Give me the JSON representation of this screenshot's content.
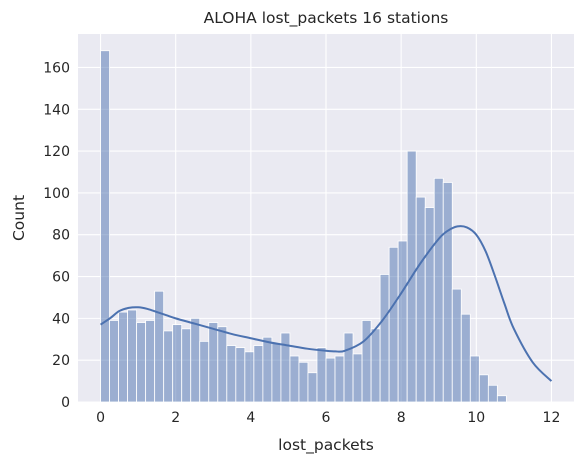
{
  "chart_data": {
    "type": "bar",
    "title": "ALOHA lost_packets 16 stations",
    "xlabel": "lost_packets",
    "ylabel": "Count",
    "xlim": [
      -0.6,
      12.6
    ],
    "ylim": [
      0,
      176
    ],
    "xticks": [
      0,
      2,
      4,
      6,
      8,
      10,
      12
    ],
    "yticks": [
      0,
      20,
      40,
      60,
      80,
      100,
      120,
      140,
      160
    ],
    "grid": true,
    "bins": {
      "start": 0,
      "width": 0.24,
      "counts": [
        168,
        39,
        43,
        44,
        38,
        39,
        53,
        34,
        37,
        35,
        40,
        29,
        38,
        36,
        27,
        26,
        24,
        27,
        31,
        28,
        33,
        22,
        19,
        14,
        26,
        21,
        22,
        33,
        23,
        39,
        35,
        61,
        74,
        77,
        120,
        98,
        93,
        107,
        105,
        54,
        42,
        22,
        13,
        8,
        3
      ]
    },
    "kde": {
      "x": [
        0,
        0.25,
        0.5,
        0.75,
        1,
        1.25,
        1.5,
        1.75,
        2,
        2.5,
        3,
        3.5,
        4,
        4.5,
        5,
        5.5,
        6,
        6.25,
        6.5,
        7,
        7.5,
        8,
        8.5,
        9,
        9.25,
        9.5,
        9.75,
        10,
        10.25,
        10.5,
        10.75,
        11,
        11.5,
        12
      ],
      "y": [
        37,
        40,
        43.5,
        45,
        45.3,
        44.5,
        43,
        41.5,
        40,
        37.5,
        35,
        32.5,
        30.5,
        28.5,
        27,
        25.5,
        24.5,
        24.2,
        24.5,
        29,
        39,
        52,
        66,
        78,
        82,
        84,
        83.5,
        80,
        72,
        60,
        47,
        35,
        19,
        10
      ]
    }
  }
}
